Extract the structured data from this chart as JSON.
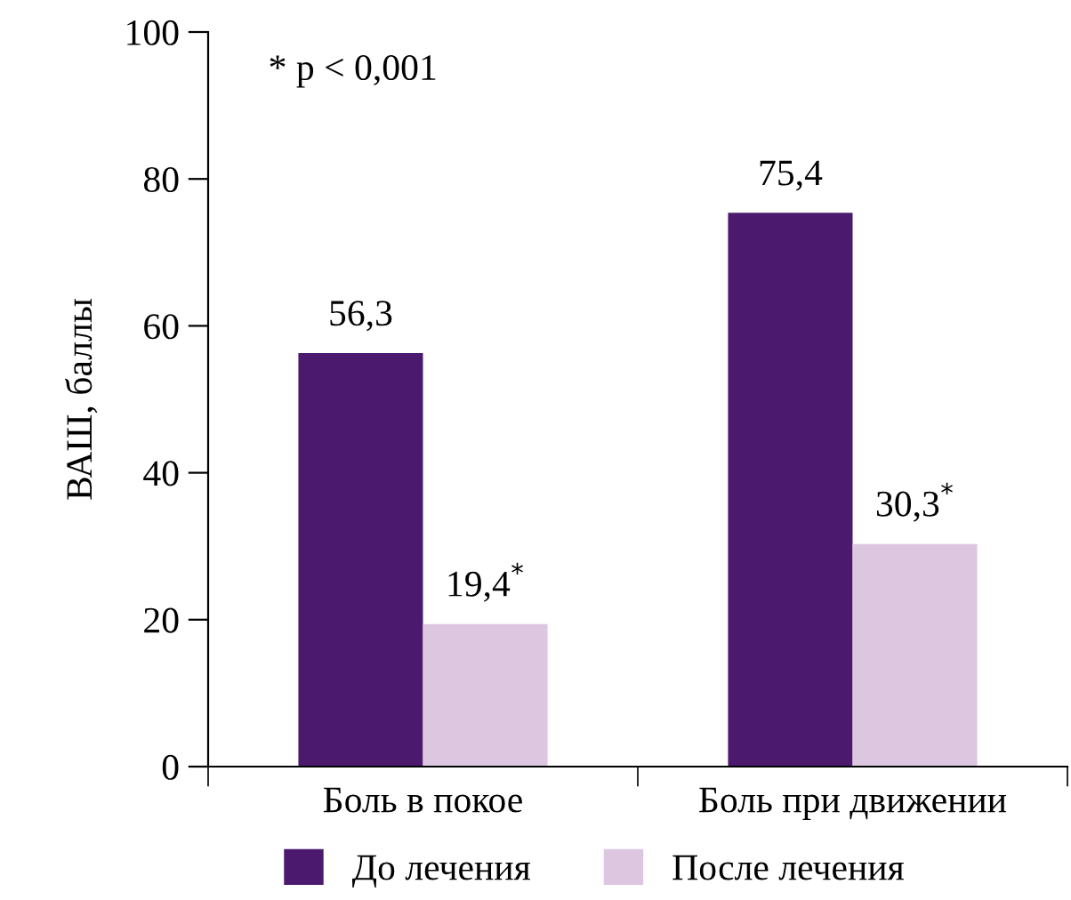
{
  "chart_data": {
    "type": "bar",
    "ylabel": "ВАШ, баллы",
    "categories": [
      "Боль в покое",
      "Боль при движении"
    ],
    "series": [
      {
        "name": "До лечения",
        "color": "#4b1a6e",
        "values": [
          56.3,
          75.4
        ],
        "value_labels": [
          "56,3",
          "75,4"
        ]
      },
      {
        "name": "После лечения",
        "color": "#dcc6e0",
        "values": [
          19.4,
          30.3
        ],
        "value_labels": [
          "19,4$^{*}$",
          "30,3$^{*}$"
        ]
      }
    ],
    "ylim": [
      0,
      100
    ],
    "yticks": [
      0,
      20,
      40,
      60,
      80,
      100
    ],
    "grid": false,
    "legend": "bottom",
    "annotations": [
      "* p < 0,001"
    ]
  }
}
